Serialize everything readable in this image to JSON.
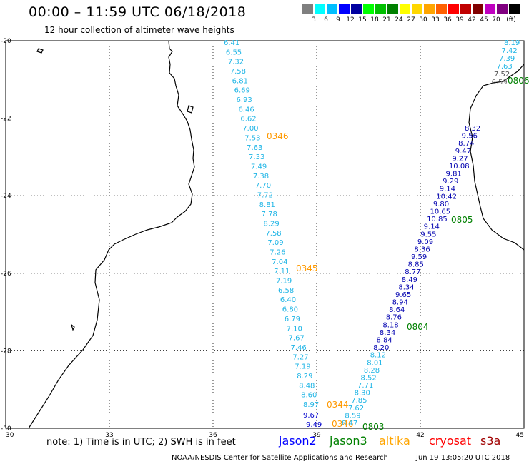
{
  "title": "00:00 – 11:59 UTC 06/18/2018",
  "subtitle": "12 hour collection of altimeter wave heights",
  "legend": {
    "unit": "(ft)",
    "colors": [
      "#7f7f7f",
      "#00ffff",
      "#00bfff",
      "#0000ff",
      "#0000a0",
      "#00ff00",
      "#00c000",
      "#008000",
      "#ffff00",
      "#ffd700",
      "#ffa500",
      "#ff6000",
      "#ff0000",
      "#c00000",
      "#800000",
      "#c000c0",
      "#800080",
      "#000000"
    ],
    "labels": [
      "3",
      "6",
      "9",
      "12",
      "15",
      "18",
      "21",
      "24",
      "27",
      "30",
      "33",
      "36",
      "39",
      "42",
      "45",
      "70"
    ]
  },
  "axes": {
    "lat_labels": [
      "-20",
      "-22",
      "-24",
      "-26",
      "-28",
      "-30"
    ],
    "lon_labels": [
      "30",
      "33",
      "36",
      "39",
      "42",
      "45"
    ]
  },
  "tracks": {
    "jason3_west": {
      "color": "#1fb5e6",
      "values": [
        "6.41",
        "6.55",
        "7.32",
        "7.58",
        "6.81",
        "6.69",
        "6.93",
        "6.46",
        "6.62",
        "7.00",
        "7.53",
        "7.63",
        "7.33",
        "7.49",
        "7.38",
        "7.70",
        "7.72",
        "8.81",
        "7.78",
        "8.29",
        "7.58",
        "7.09",
        "7.26",
        "7.04",
        "7.11",
        "7.19",
        "6.58",
        "6.40",
        "6.80",
        "6.79",
        "7.10",
        "7.67",
        "7.46",
        "7.27",
        "7.19",
        "8.29",
        "8.48",
        "8.60",
        "8.97"
      ],
      "time_labels": [
        "0346",
        "0345",
        "0344"
      ]
    },
    "jason2_tail": {
      "color": "#0000cc",
      "values": [
        "9.67",
        "9.49"
      ]
    },
    "jason3_bottom_time": "0346",
    "jason2_east": {
      "color": "#0000b0",
      "values": [
        "8.32",
        "9.56",
        "8.74",
        "9.47",
        "9.27",
        "10.08",
        "9.81",
        "9.29",
        "9.14",
        "10.42",
        "9.80",
        "10.65",
        "10.85",
        "9.14",
        "9.55",
        "9.09",
        "8.36",
        "9.59",
        "8.85",
        "8.77",
        "8.49",
        "8.34",
        "9.65",
        "8.94",
        "8.64",
        "8.76",
        "8.18",
        "8.34",
        "8.84",
        "8.20",
        "8.12",
        "8.01",
        "8.28",
        "8.52",
        "7.71",
        "8.30",
        "7.85",
        "7.62",
        "8.59",
        "8.47"
      ],
      "time_labels": [
        "0806",
        "0805",
        "0804",
        "0803"
      ]
    },
    "ne_track": {
      "values": [
        "8.19",
        "7.42",
        "7.39",
        "7.63",
        "7.52",
        "6.59"
      ]
    }
  },
  "note": "note: 1) Time is in UTC; 2) SWH is in feet",
  "satellites": [
    {
      "name": "jason2",
      "color": "#0000ff"
    },
    {
      "name": "jason3",
      "color": "#008000"
    },
    {
      "name": "altika",
      "color": "#ffa500"
    },
    {
      "name": "cryosat",
      "color": "#ff0000"
    },
    {
      "name": "s3a",
      "color": "#a00000"
    }
  ],
  "footer": "NOAA/NESDIS Center for Satellite Applications and Research",
  "timestamp": "Jun 19 13:05:20 UTC 2018"
}
